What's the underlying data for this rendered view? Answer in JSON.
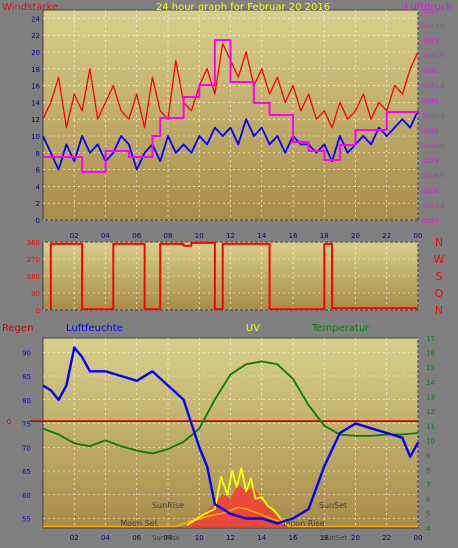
{
  "colors": {
    "background": "#808080",
    "plot_top": "#d8d08c",
    "plot_bottom": "#a88c48",
    "gridline": "#ffffff",
    "wind": "#ff0000",
    "wind_avg": "#0000ff",
    "pressure": "#ff00ff",
    "direction": "#ff0000",
    "humidity": "#0000ff",
    "temperature": "#008000",
    "uv": "#ffff00",
    "solar": "#ff3030",
    "moon": "#ffaa00",
    "zero_line": "#cc0000",
    "tick_label": "#000080"
  },
  "chart_data": [
    {
      "type": "line",
      "title": "24 hour graph for   Februar 20 2016",
      "left_title": "Windstärke",
      "right_title": "Luftdruck",
      "x_ticks": [
        "02",
        "04",
        "06",
        "08",
        "10",
        "12",
        "14",
        "16",
        "18",
        "20",
        "22",
        "00"
      ],
      "y_ticks": [
        "0",
        "2",
        "4",
        "6",
        "8",
        "10",
        "12",
        "14",
        "16",
        "18",
        "20",
        "22",
        "24"
      ],
      "y_right_ticks": [
        "1027",
        "1027,5",
        "1028",
        "1028,5",
        "1029",
        "1029,5",
        "1030",
        "1030,5",
        "1031",
        "1031,5",
        "1032",
        "1032,5",
        "1033",
        "1033,5",
        "1034"
      ],
      "ylim": [
        0,
        25
      ],
      "y_right_lim": [
        1027,
        1034
      ],
      "grid": true,
      "series": [
        {
          "name": "Windstärke",
          "axis": "left",
          "x": [
            0,
            0.5,
            1,
            1.5,
            2,
            2.5,
            3,
            3.5,
            4,
            4.5,
            5,
            5.5,
            6,
            6.5,
            7,
            7.5,
            8,
            8.5,
            9,
            9.5,
            10,
            10.5,
            11,
            11.5,
            12,
            12.5,
            13,
            13.5,
            14,
            14.5,
            15,
            15.5,
            16,
            16.5,
            17,
            17.5,
            18,
            18.5,
            19,
            19.5,
            20,
            20.5,
            21,
            21.5,
            22,
            22.5,
            23,
            23.5,
            24
          ],
          "values": [
            12,
            14,
            17,
            11,
            15,
            13,
            18,
            12,
            14,
            16,
            13,
            12,
            15,
            11,
            17,
            13,
            12,
            19,
            14,
            13,
            16,
            18,
            15,
            21,
            19,
            17,
            20,
            16,
            18,
            15,
            17,
            14,
            16,
            13,
            15,
            12,
            13,
            11,
            14,
            12,
            13,
            15,
            12,
            14,
            13,
            16,
            15,
            18,
            20
          ]
        },
        {
          "name": "",
          "axis": "left",
          "x": [
            0,
            0.5,
            1,
            1.5,
            2,
            2.5,
            3,
            3.5,
            4,
            4.5,
            5,
            5.5,
            6,
            6.5,
            7,
            7.5,
            8,
            8.5,
            9,
            9.5,
            10,
            10.5,
            11,
            11.5,
            12,
            12.5,
            13,
            13.5,
            14,
            14.5,
            15,
            15.5,
            16,
            16.5,
            17,
            17.5,
            18,
            18.5,
            19,
            19.5,
            20,
            20.5,
            21,
            21.5,
            22,
            22.5,
            23,
            23.5,
            24
          ],
          "values": [
            10,
            8,
            6,
            9,
            7,
            10,
            8,
            9,
            7,
            8,
            10,
            9,
            6,
            8,
            9,
            7,
            10,
            8,
            9,
            8,
            10,
            9,
            11,
            10,
            11,
            9,
            12,
            10,
            11,
            9,
            10,
            8,
            10,
            9,
            9,
            8,
            9,
            7,
            10,
            8,
            9,
            10,
            9,
            11,
            10,
            11,
            12,
            11,
            13
          ]
        },
        {
          "name": "Luftdruck",
          "axis": "right",
          "x": [
            0,
            2.5,
            2.5,
            4,
            4,
            5.5,
            5.5,
            7,
            7,
            7.5,
            7.5,
            9,
            9,
            10,
            10,
            11,
            11,
            12,
            12,
            13.5,
            13.5,
            14.5,
            14.5,
            16,
            16,
            17,
            17,
            18,
            18,
            19,
            19,
            20,
            20,
            22,
            22,
            24
          ],
          "values": [
            1029.1,
            1029.1,
            1028.6,
            1028.6,
            1029.3,
            1029.3,
            1029.1,
            1029.1,
            1029.8,
            1029.8,
            1030.4,
            1030.4,
            1031.1,
            1031.1,
            1031.5,
            1031.5,
            1033.0,
            1033.0,
            1031.6,
            1031.6,
            1030.9,
            1030.9,
            1030.5,
            1030.5,
            1029.6,
            1029.6,
            1029.3,
            1029.3,
            1029.0,
            1029.0,
            1029.5,
            1029.5,
            1030.0,
            1030.0,
            1030.6,
            1030.6
          ]
        }
      ]
    },
    {
      "type": "line",
      "y_ticks": [
        "360",
        "270",
        "180",
        "90",
        "0"
      ],
      "y_right_labels": [
        "N",
        "W",
        "S",
        "O",
        "N"
      ],
      "ylim": [
        0,
        360
      ],
      "grid": true,
      "series": [
        {
          "name": "",
          "x": [
            0.5,
            0.5,
            2.5,
            2.5,
            4.5,
            4.5,
            6.5,
            6.5,
            7.5,
            7.5,
            9,
            9,
            9.5,
            9.5,
            11,
            11,
            11.5,
            11.5,
            14.5,
            14.5,
            18,
            18,
            18.5,
            18.5,
            24
          ],
          "values": [
            5,
            350,
            350,
            5,
            5,
            350,
            350,
            5,
            5,
            350,
            350,
            340,
            340,
            355,
            355,
            5,
            5,
            350,
            350,
            5,
            5,
            350,
            350,
            10,
            10
          ]
        }
      ]
    },
    {
      "type": "line",
      "left_title": "Regen",
      "left2_title": "Luftfeuchte",
      "center_title": "UV",
      "right_title": "Temperatur",
      "annotations": [
        "SunRise",
        "SunSet",
        "Moon Set",
        "Moon Rise",
        "SunRise",
        "SunSet"
      ],
      "x_ticks": [
        "02",
        "04",
        "06",
        "08",
        "10",
        "12",
        "14",
        "16",
        "18",
        "20",
        "22",
        "00"
      ],
      "y_left_ticks": [
        "0"
      ],
      "y_left2_ticks": [
        "55",
        "60",
        "65",
        "70",
        "75",
        "80",
        "85",
        "90"
      ],
      "y_right_ticks": [
        "4",
        "5",
        "6",
        "7",
        "8",
        "9",
        "10",
        "11",
        "12",
        "13",
        "14",
        "15",
        "16",
        "17"
      ],
      "ylim": [
        53,
        93
      ],
      "y_right_lim": [
        4,
        17
      ],
      "grid": true,
      "series": [
        {
          "name": "Luftfeuchte",
          "axis": "left2",
          "x": [
            0,
            0.5,
            1,
            1.5,
            2,
            2.5,
            3,
            4,
            5,
            6,
            7,
            8,
            9,
            10,
            10.5,
            11,
            11.5,
            12,
            13,
            14,
            15,
            16,
            17,
            18,
            19,
            20,
            21,
            22,
            23,
            23.5,
            24
          ],
          "values": [
            83,
            82,
            80,
            83,
            91,
            89,
            86,
            86,
            85,
            84,
            86,
            83,
            80,
            70,
            66,
            58,
            57,
            56,
            55,
            55,
            54,
            55,
            57,
            66,
            73,
            75,
            74,
            73,
            72,
            68,
            71
          ]
        },
        {
          "name": "Temperatur",
          "axis": "right",
          "x": [
            0,
            1,
            2,
            3,
            4,
            5,
            6,
            7,
            8,
            9,
            10,
            11,
            12,
            13,
            14,
            15,
            16,
            17,
            18,
            19,
            20,
            21,
            22,
            23,
            24
          ],
          "values": [
            10.8,
            10.4,
            9.8,
            9.6,
            10.0,
            9.6,
            9.3,
            9.1,
            9.4,
            9.9,
            10.8,
            12.8,
            14.5,
            15.2,
            15.4,
            15.2,
            14.2,
            12.4,
            11.0,
            10.4,
            10.3,
            10.3,
            10.4,
            10.4,
            10.5
          ]
        },
        {
          "name": "UV",
          "axis": "right",
          "x": [
            9.2,
            9.8,
            10.4,
            11,
            11.4,
            11.8,
            12.1,
            12.4,
            12.7,
            13,
            13.3,
            13.6,
            14,
            14.4,
            14.8,
            15.3,
            15.8
          ],
          "values": [
            4.2,
            4.6,
            5.0,
            5.3,
            7.5,
            6.3,
            7.9,
            6.8,
            8.1,
            6.5,
            7.4,
            6.0,
            6.1,
            5.5,
            5.2,
            4.5,
            4.1
          ]
        },
        {
          "name": "",
          "axis": "right",
          "x": [
            9,
            9.5,
            10,
            10.5,
            11,
            11.5,
            12,
            12.5,
            13,
            13.5,
            14,
            14.5,
            15,
            15.5,
            16
          ],
          "values": [
            4.0,
            4.3,
            4.8,
            5.2,
            5.7,
            6.3,
            6.0,
            7.0,
            6.5,
            6.8,
            5.9,
            5.3,
            4.8,
            4.4,
            4.0
          ]
        },
        {
          "name": "",
          "axis": "right",
          "x": [
            0,
            8.5,
            9,
            9.5,
            10,
            10.5,
            11,
            11.5,
            12,
            12.5,
            13,
            13.5,
            14,
            14.5,
            15,
            15.5,
            16,
            24
          ],
          "values": [
            4.1,
            4.1,
            4.3,
            4.5,
            4.6,
            4.8,
            4.9,
            5.0,
            5.2,
            5.4,
            5.3,
            5.1,
            4.9,
            4.7,
            4.5,
            4.3,
            4.1,
            4.1
          ]
        }
      ]
    }
  ]
}
